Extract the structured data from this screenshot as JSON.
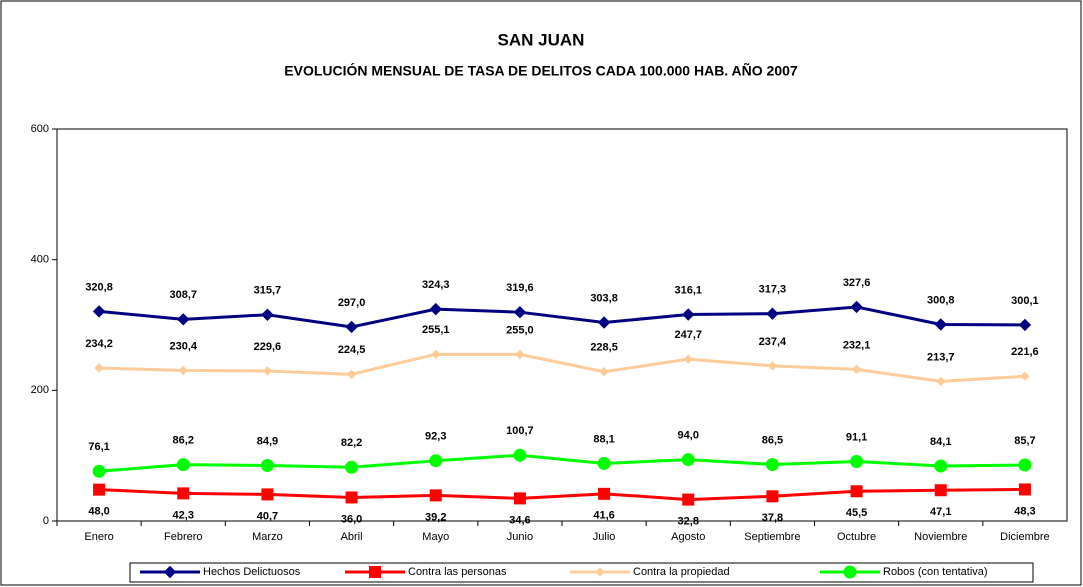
{
  "chart_data": {
    "type": "line",
    "title": "SAN JUAN",
    "subtitle": "EVOLUCIÓN MENSUAL DE TASA DE DELITOS CADA 100.000 HAB. AÑO 2007",
    "categories": [
      "Enero",
      "Febrero",
      "Marzo",
      "Abril",
      "Mayo",
      "Junio",
      "Julio",
      "Agosto",
      "Septiembre",
      "Octubre",
      "Noviembre",
      "Diciembre"
    ],
    "ylim": [
      0,
      600
    ],
    "yticks": [
      0,
      200,
      400,
      600
    ],
    "grid": false,
    "legend": "bottom",
    "series": [
      {
        "name": "Hechos Delictuosos",
        "color": "#000080",
        "marker": "diamond",
        "values": [
          320.8,
          308.7,
          315.7,
          297.0,
          324.3,
          319.6,
          303.8,
          316.1,
          317.3,
          327.6,
          300.8,
          300.1
        ],
        "value_labels": [
          "320,8",
          "308,7",
          "315,7",
          "297,0",
          "324,3",
          "319,6",
          "303,8",
          "316,1",
          "317,3",
          "327,6",
          "300,8",
          "300,1"
        ]
      },
      {
        "name": "Contra las personas",
        "color": "#ff0000",
        "marker": "square",
        "values": [
          48.0,
          42.3,
          40.7,
          36.0,
          39.2,
          34.6,
          41.6,
          32.8,
          37.8,
          45.5,
          47.1,
          48.3
        ],
        "value_labels": [
          "48,0",
          "42,3",
          "40,7",
          "36,0",
          "39,2",
          "34,6",
          "41,6",
          "32,8",
          "37,8",
          "45,5",
          "47,1",
          "48,3"
        ]
      },
      {
        "name": "Contra la propiedad",
        "color": "#ffcc99",
        "marker": "diamond",
        "values": [
          234.2,
          230.4,
          229.6,
          224.5,
          255.1,
          255.0,
          228.5,
          247.7,
          237.4,
          232.1,
          213.7,
          221.6
        ],
        "value_labels": [
          "234,2",
          "230,4",
          "229,6",
          "224,5",
          "255,1",
          "255,0",
          "228,5",
          "247,7",
          "237,4",
          "232,1",
          "213,7",
          "221,6"
        ]
      },
      {
        "name": "Robos (con tentativa)",
        "color": "#00ff00",
        "marker": "circle",
        "values": [
          76.1,
          86.2,
          84.9,
          82.2,
          92.3,
          100.7,
          88.1,
          94.0,
          86.5,
          91.1,
          84.1,
          85.7
        ],
        "value_labels": [
          "76,1",
          "86,2",
          "84,9",
          "82,2",
          "92,3",
          "100,7",
          "88,1",
          "94,0",
          "86,5",
          "91,1",
          "84,1",
          "85,7"
        ]
      }
    ]
  }
}
